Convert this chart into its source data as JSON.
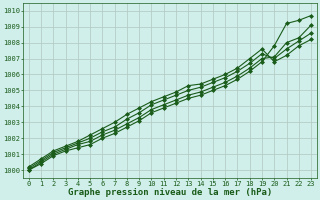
{
  "xlabel": "Graphe pression niveau de la mer (hPa)",
  "xlim": [
    -0.5,
    23.5
  ],
  "ylim": [
    999.5,
    1010.5
  ],
  "xticks": [
    0,
    1,
    2,
    3,
    4,
    5,
    6,
    7,
    8,
    9,
    10,
    11,
    12,
    13,
    14,
    15,
    16,
    17,
    18,
    19,
    20,
    21,
    22,
    23
  ],
  "yticks": [
    1000,
    1001,
    1002,
    1003,
    1004,
    1005,
    1006,
    1007,
    1008,
    1009,
    1010
  ],
  "bg_color": "#d0eeea",
  "grid_color": "#b0c8c0",
  "line_color": "#1a5c1a",
  "lines": [
    [
      1000.0,
      1000.4,
      1000.9,
      1001.2,
      1001.4,
      1001.6,
      1002.0,
      1002.3,
      1002.7,
      1003.1,
      1003.6,
      1003.9,
      1004.2,
      1004.5,
      1004.7,
      1005.0,
      1005.3,
      1005.7,
      1006.2,
      1006.8,
      1007.8,
      1009.2,
      1009.4,
      1009.7
    ],
    [
      1000.0,
      1000.5,
      1001.0,
      1001.3,
      1001.6,
      1001.8,
      1002.2,
      1002.5,
      1002.9,
      1003.3,
      1003.8,
      1004.1,
      1004.4,
      1004.7,
      1004.9,
      1005.2,
      1005.5,
      1005.9,
      1006.4,
      1007.0,
      1007.1,
      1008.0,
      1008.3,
      1009.1
    ],
    [
      1000.1,
      1000.6,
      1001.1,
      1001.4,
      1001.7,
      1002.0,
      1002.4,
      1002.7,
      1003.2,
      1003.6,
      1004.1,
      1004.4,
      1004.7,
      1005.0,
      1005.2,
      1005.5,
      1005.8,
      1006.2,
      1006.7,
      1007.3,
      1007.0,
      1007.6,
      1008.1,
      1008.6
    ],
    [
      1000.2,
      1000.7,
      1001.2,
      1001.5,
      1001.8,
      1002.2,
      1002.6,
      1003.0,
      1003.5,
      1003.9,
      1004.3,
      1004.6,
      1004.9,
      1005.3,
      1005.4,
      1005.7,
      1006.0,
      1006.4,
      1007.0,
      1007.6,
      1006.8,
      1007.2,
      1007.8,
      1008.2
    ]
  ],
  "marker": "D",
  "markersize": 2.0,
  "linewidth": 0.8,
  "tick_fontsize": 5.0,
  "label_fontsize": 6.5,
  "label_fontweight": "bold"
}
